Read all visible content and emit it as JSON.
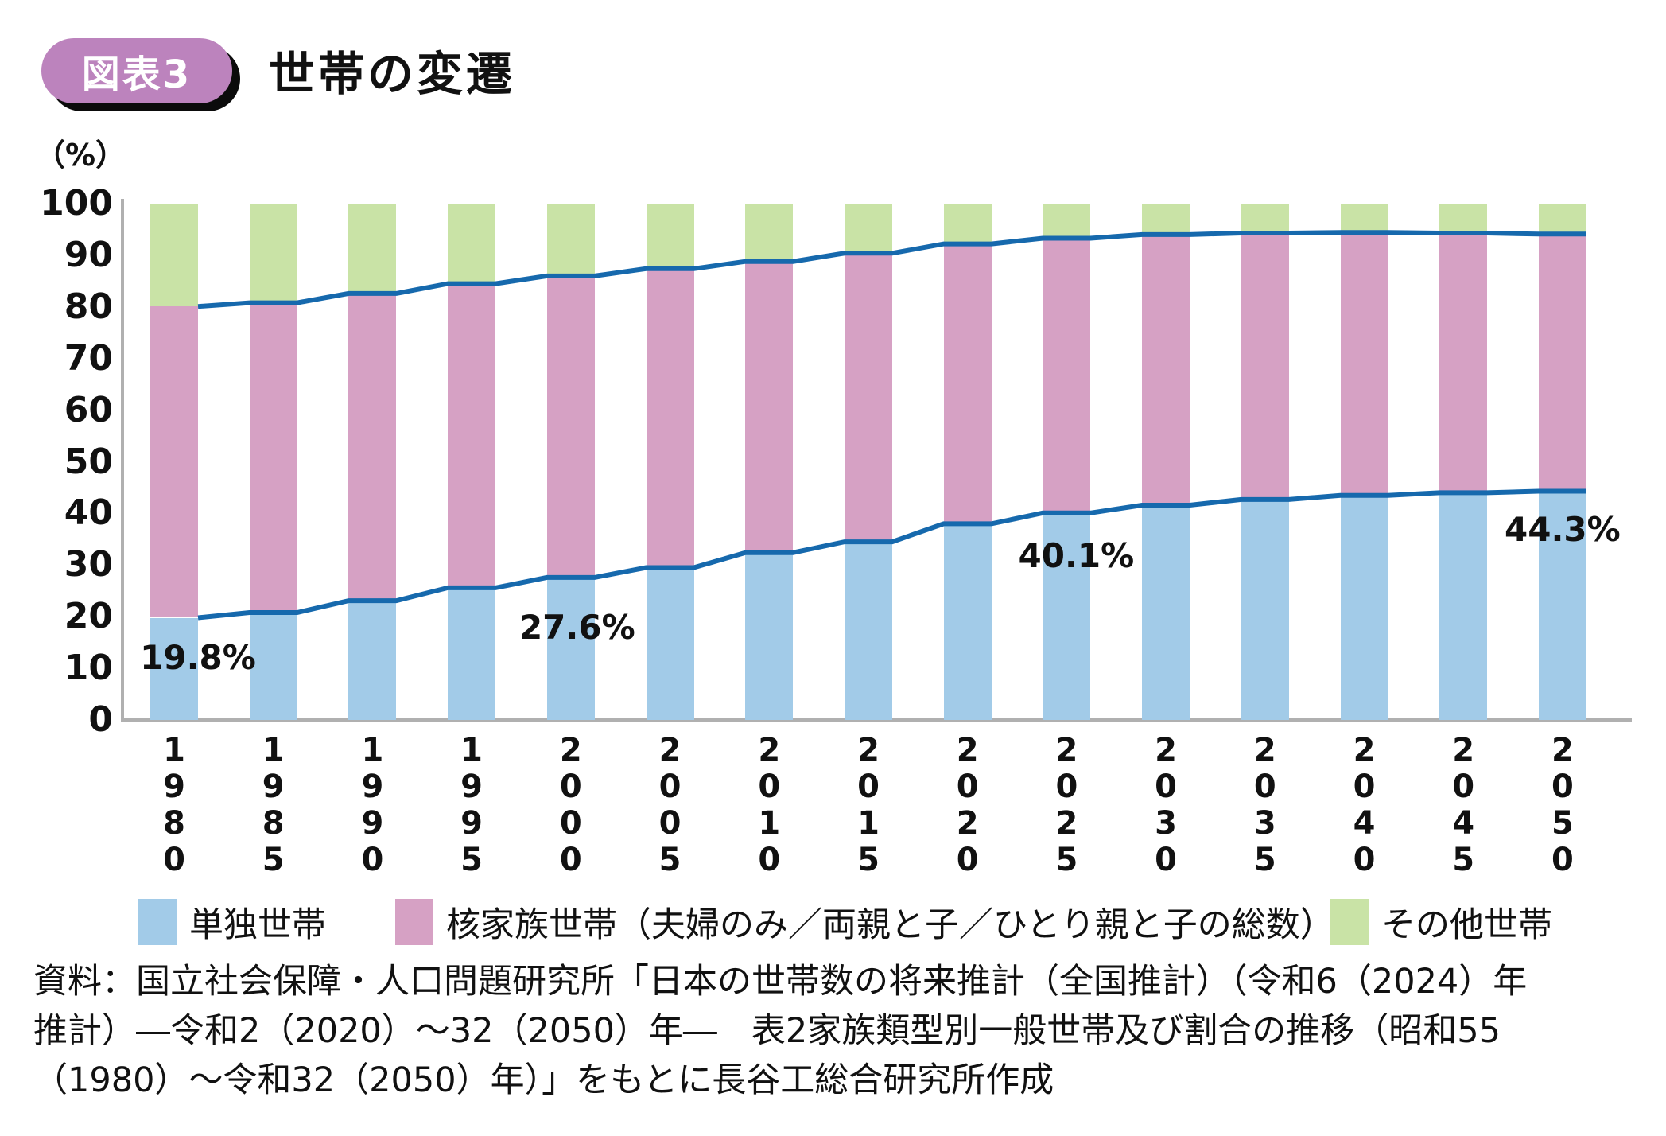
{
  "header": {
    "badge_label": "図表3",
    "badge_color": "#BC83BD",
    "badge_shadow_color": "#0B0B0B",
    "title": "世帯の変遷"
  },
  "chart_data": {
    "type": "bar",
    "stacked_percent": true,
    "title": "世帯の変遷",
    "unit_label": "（%）",
    "ylim": [
      0,
      100
    ],
    "yticks": [
      100,
      90,
      80,
      70,
      60,
      50,
      40,
      30,
      20,
      10,
      0
    ],
    "grid": false,
    "categories": [
      "1980",
      "1985",
      "1990",
      "1995",
      "2000",
      "2005",
      "2010",
      "2015",
      "2020",
      "2025",
      "2030",
      "2035",
      "2040",
      "2045",
      "2050"
    ],
    "series": [
      {
        "name": "単独世帯",
        "color": "#A2CBE8",
        "values": [
          19.8,
          20.8,
          23.1,
          25.6,
          27.6,
          29.5,
          32.4,
          34.5,
          38.0,
          40.1,
          41.6,
          42.7,
          43.5,
          44.0,
          44.3
        ]
      },
      {
        "name": "核家族世帯（夫婦のみ／両親と子／ひとり親と子の総数）",
        "color": "#D6A1C4",
        "values": [
          60.3,
          60.0,
          59.5,
          58.9,
          58.4,
          57.9,
          56.4,
          55.9,
          54.2,
          53.2,
          52.4,
          51.6,
          50.9,
          50.3,
          49.8
        ]
      },
      {
        "name": "その他世帯",
        "color": "#C9E3A6",
        "values": [
          19.9,
          19.2,
          17.4,
          15.5,
          14.0,
          12.6,
          11.2,
          9.6,
          7.8,
          6.7,
          6.0,
          5.7,
          5.6,
          5.7,
          5.9
        ]
      }
    ],
    "boundary_line_color": "#1669AD",
    "axis_color": "#B0B0B0",
    "annotations": [
      {
        "category": "1980",
        "index": 0,
        "text": "19.8%"
      },
      {
        "category": "2000",
        "index": 4,
        "text": "27.6%"
      },
      {
        "category": "2025",
        "index": 9,
        "text": "40.1%"
      },
      {
        "category": "2050",
        "index": 14,
        "text": "44.3%"
      }
    ],
    "legend_position": "bottom"
  },
  "legend": {
    "items": [
      {
        "label": "単独世帯",
        "color": "#A2CBE8"
      },
      {
        "label": "核家族世帯（夫婦のみ／両親と子／ひとり親と子の総数）",
        "color": "#D6A1C4"
      },
      {
        "label": "その他世帯",
        "color": "#C9E3A6"
      }
    ]
  },
  "source": {
    "line1": "資料：国立社会保障・人口問題研究所「日本の世帯数の将来推計（全国推計）（令和6（2024）年",
    "line2": "推計）―令和2（2020）～32（2050）年―　表2家族類型別一般世帯及び割合の推移（昭和55",
    "line3": "（1980）～令和32（2050）年）」をもとに長谷工総合研究所作成"
  }
}
